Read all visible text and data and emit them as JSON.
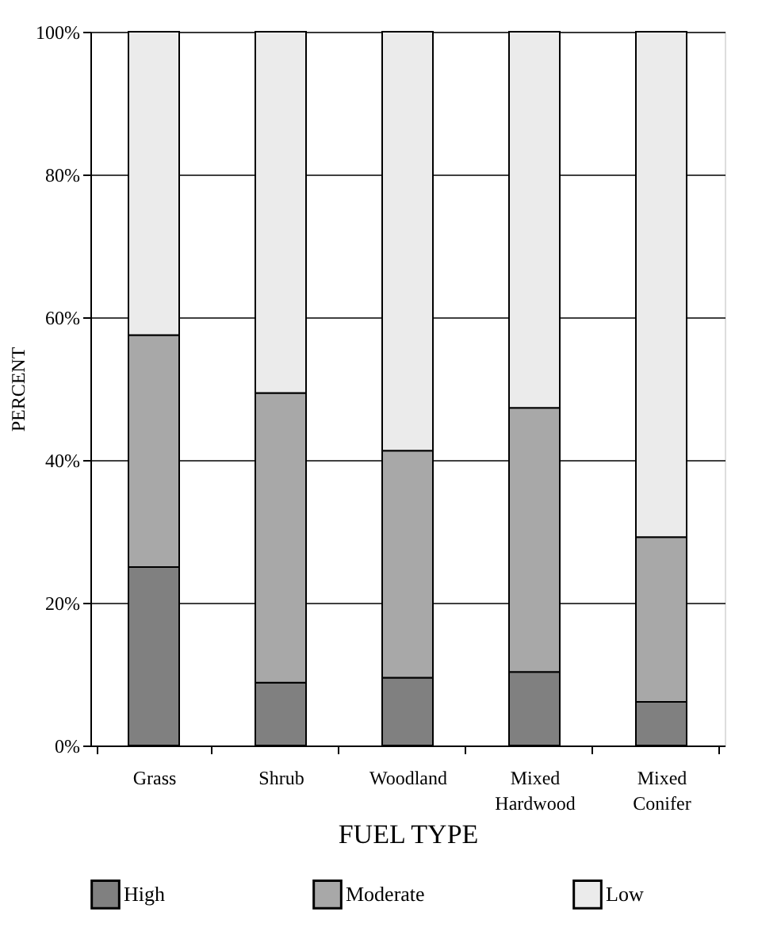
{
  "chart_data": {
    "type": "bar",
    "stacked": true,
    "xlabel": "FUEL TYPE",
    "ylabel": "PERCENT",
    "categories": [
      "Grass",
      "Shrub",
      "Woodland",
      "Mixed Hardwood",
      "Mixed Conifer"
    ],
    "series": [
      {
        "name": "High",
        "color": "#808080",
        "values": [
          25.0,
          8.8,
          9.5,
          10.3,
          6.1
        ]
      },
      {
        "name": "Moderate",
        "color": "#a8a8a8",
        "values": [
          32.5,
          40.6,
          31.8,
          37.0,
          23.1
        ]
      },
      {
        "name": "Low",
        "color": "#ebebeb",
        "values": [
          42.5,
          50.6,
          58.7,
          52.7,
          70.8
        ]
      }
    ],
    "ylim": [
      0,
      100
    ],
    "yticks": [
      {
        "value": 0,
        "label": "0%"
      },
      {
        "value": 20,
        "label": "20%"
      },
      {
        "value": 40,
        "label": "40%"
      },
      {
        "value": 60,
        "label": "60%"
      },
      {
        "value": 80,
        "label": "80%"
      },
      {
        "value": 100,
        "label": "100%"
      }
    ],
    "grid": "y",
    "legend": "bottom"
  }
}
